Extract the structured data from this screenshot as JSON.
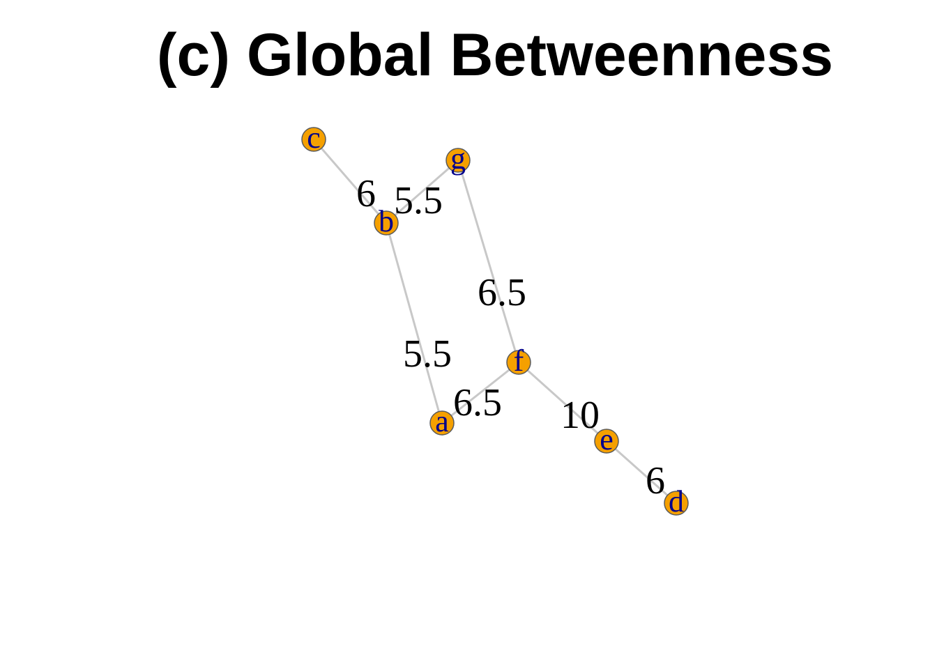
{
  "title": "(c) Global Betweenness",
  "colors": {
    "node_fill": "#f5a000",
    "node_stroke": "#5a5a5a",
    "node_label": "#00008b",
    "edge": "#c8c8c8",
    "edge_label": "#000000"
  },
  "nodes": [
    {
      "id": "c",
      "label": "c"
    },
    {
      "id": "g",
      "label": "g"
    },
    {
      "id": "b",
      "label": "b"
    },
    {
      "id": "f",
      "label": "f"
    },
    {
      "id": "a",
      "label": "a"
    },
    {
      "id": "e",
      "label": "e"
    },
    {
      "id": "d",
      "label": "d"
    }
  ],
  "edges": [
    {
      "id": "c-b",
      "source": "c",
      "target": "b",
      "label": "6"
    },
    {
      "id": "g-b",
      "source": "g",
      "target": "b",
      "label": "5.5"
    },
    {
      "id": "b-a",
      "source": "b",
      "target": "a",
      "label": "5.5"
    },
    {
      "id": "g-f",
      "source": "g",
      "target": "f",
      "label": "6.5"
    },
    {
      "id": "f-a",
      "source": "f",
      "target": "a",
      "label": "6.5"
    },
    {
      "id": "f-e",
      "source": "f",
      "target": "e",
      "label": "10"
    },
    {
      "id": "e-d",
      "source": "e",
      "target": "d",
      "label": "6"
    }
  ]
}
